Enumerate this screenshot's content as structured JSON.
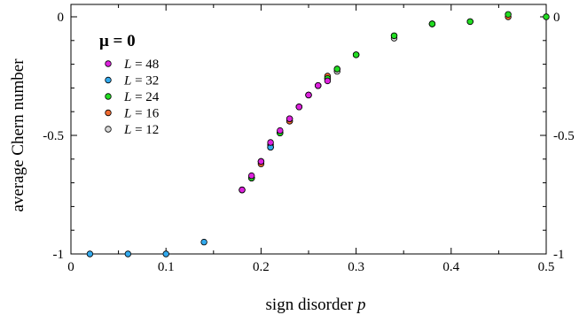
{
  "chart_data": {
    "type": "scatter",
    "xlabel": "sign disorder",
    "xlabel_var": "p",
    "ylabel": "average Chern number",
    "xlim": [
      0,
      0.5
    ],
    "ylim": [
      -1.05,
      0.02
    ],
    "x_ticks": [
      "0",
      "0.1",
      "0.2",
      "0.3",
      "0.4",
      "0.5"
    ],
    "y_ticks_left": [
      "0",
      "-0.5",
      "-1"
    ],
    "y_ticks_right": [
      "0",
      "-0.5",
      "-1"
    ],
    "legend_title": "μ = 0",
    "legend_placement": "top-left",
    "grid": false,
    "series": [
      {
        "name": "L = 12",
        "var": "L",
        "label_rest": " = 12",
        "color": "#d8d8d8",
        "x": [
          0.18,
          0.19,
          0.2,
          0.21,
          0.22,
          0.23,
          0.24,
          0.25,
          0.26,
          0.27,
          0.28,
          0.3,
          0.34,
          0.38
        ],
        "y": [
          -0.73,
          -0.68,
          -0.61,
          -0.55,
          -0.49,
          -0.44,
          -0.38,
          -0.33,
          -0.29,
          -0.26,
          -0.23,
          -0.16,
          -0.09,
          -0.03
        ]
      },
      {
        "name": "L = 16",
        "var": "L",
        "label_rest": " = 16",
        "color": "#f06a30",
        "x": [
          0.18,
          0.19,
          0.2,
          0.21,
          0.22,
          0.23,
          0.24,
          0.25,
          0.26,
          0.27,
          0.28,
          0.3,
          0.34,
          0.38,
          0.42,
          0.46
        ],
        "y": [
          -0.73,
          -0.68,
          -0.62,
          -0.54,
          -0.49,
          -0.44,
          -0.38,
          -0.33,
          -0.29,
          -0.25,
          -0.22,
          -0.16,
          -0.08,
          -0.03,
          -0.02,
          0.0
        ]
      },
      {
        "name": "L = 24",
        "var": "L",
        "label_rest": " = 24",
        "color": "#22dd22",
        "x": [
          0.18,
          0.19,
          0.2,
          0.21,
          0.22,
          0.23,
          0.24,
          0.25,
          0.26,
          0.27,
          0.28,
          0.3,
          0.34,
          0.38,
          0.42,
          0.46,
          0.5
        ],
        "y": [
          -0.73,
          -0.68,
          -0.61,
          -0.55,
          -0.49,
          -0.43,
          -0.38,
          -0.33,
          -0.29,
          -0.26,
          -0.22,
          -0.16,
          -0.08,
          -0.03,
          -0.02,
          0.01,
          0.0
        ]
      },
      {
        "name": "L = 32",
        "var": "L",
        "label_rest": " = 32",
        "color": "#33aaee",
        "x": [
          0.02,
          0.06,
          0.1,
          0.14,
          0.21
        ],
        "y": [
          -1.0,
          -1.0,
          -1.0,
          -0.95,
          -0.55
        ]
      },
      {
        "name": "L = 48",
        "var": "L",
        "label_rest": " = 48",
        "color": "#dd22dd",
        "x": [
          0.18,
          0.19,
          0.2,
          0.21,
          0.22,
          0.23,
          0.24,
          0.25,
          0.26,
          0.27
        ],
        "y": [
          -0.73,
          -0.67,
          -0.61,
          -0.53,
          -0.48,
          -0.43,
          -0.38,
          -0.33,
          -0.29,
          -0.27
        ]
      }
    ],
    "legend_order": [
      "L = 48",
      "L = 32",
      "L = 24",
      "L = 16",
      "L = 12"
    ]
  }
}
